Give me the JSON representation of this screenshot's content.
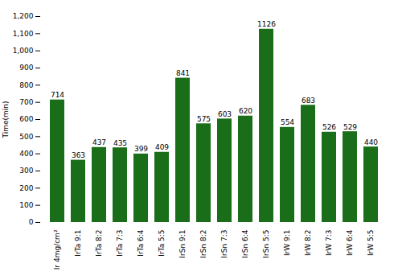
{
  "chart_data": {
    "type": "bar",
    "categories": [
      "Ir 4mg/cm²",
      "IrTa 9:1",
      "IrTa 8:2",
      "IrTa 7:3",
      "IrTa 6:4",
      "IrTa 5:5",
      "IrSn 9:1",
      "IrSn 8:2",
      "IrSn 7:3",
      "IrSn 6:4",
      "IrSn 5:5",
      "IrW 9:1",
      "IrW 8:2",
      "IrW 7:3",
      "IrW 6:4",
      "IrW 5:5"
    ],
    "values": [
      714,
      363,
      437,
      435,
      399,
      409,
      841,
      575,
      603,
      620,
      1126,
      554,
      683,
      526,
      529,
      440
    ],
    "color": "#1a6e1a",
    "ylabel": "Time(min)",
    "ylim": [
      0,
      1200
    ],
    "yticks": [
      0,
      100,
      200,
      300,
      400,
      500,
      600,
      700,
      800,
      900,
      1000,
      1100,
      1200
    ],
    "grid": false,
    "data_labels": true
  }
}
